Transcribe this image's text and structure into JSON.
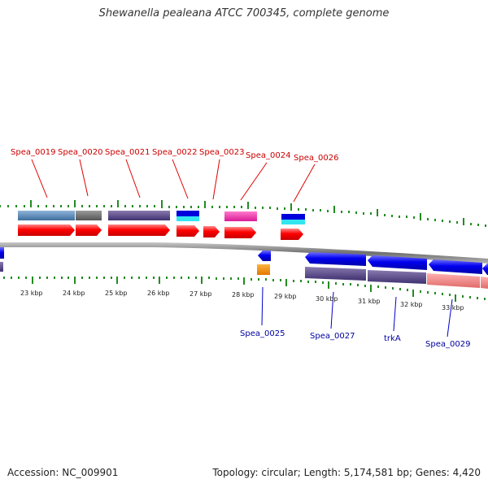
{
  "title": "Shewanella pealeana ATCC 700345, complete genome",
  "accession": "Accession: NC_009901",
  "summary": "Topology: circular; Length: 5,174,581 bp; Genes: 4,420",
  "colors": {
    "forward_gene": "#ff0000",
    "reverse_gene": "#0000ee",
    "backbone": "#8a8a8a",
    "tick": "#228b22",
    "label_forward": "#cc0000",
    "label_reverse": "#00009e"
  },
  "kbp_ticks": [
    "23 kbp",
    "24 kbp",
    "25 kbp",
    "26 kbp",
    "27 kbp",
    "28 kbp",
    "29 kbp",
    "30 kbp",
    "31 kbp",
    "32 kbp",
    "33 kbp"
  ],
  "labels_top": [
    "Spea_0019",
    "Spea_0020",
    "Spea_0021",
    "Spea_0022",
    "Spea_0023",
    "Spea_0024",
    "Spea_0026"
  ],
  "labels_bottom": [
    "Spea_0025",
    "Spea_0027",
    "trkA",
    "Spea_0029"
  ]
}
